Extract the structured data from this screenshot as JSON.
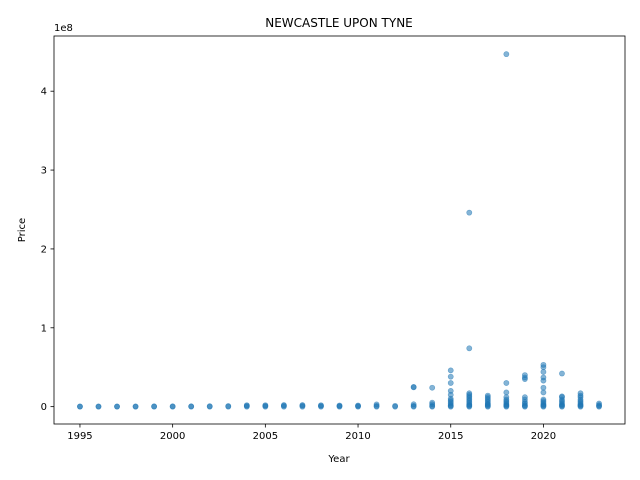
{
  "chart_data": {
    "type": "scatter",
    "title": "NEWCASTLE UPON TYNE",
    "xlabel": "Year",
    "ylabel": "Price",
    "y_scale_label": "1e8",
    "xlim": [
      1993.6,
      2024.4
    ],
    "ylim": [
      -22000000,
      470000000
    ],
    "x_ticks": [
      1995,
      2000,
      2005,
      2010,
      2015,
      2020
    ],
    "x_tick_labels": [
      "1995",
      "2000",
      "2005",
      "2010",
      "2015",
      "2020"
    ],
    "y_ticks": [
      0,
      100000000,
      200000000,
      300000000,
      400000000
    ],
    "y_tick_labels": [
      "0",
      "1",
      "2",
      "3",
      "4"
    ],
    "grid": false,
    "point_color": "#1f77b4",
    "series": [
      {
        "x": [
          1995,
          1995,
          1996,
          1996,
          1997,
          1997,
          1998,
          1998,
          1999,
          1999,
          2000,
          2000,
          2001,
          2001,
          2002,
          2002,
          2003,
          2003,
          2004,
          2004,
          2004,
          2005,
          2005,
          2005,
          2006,
          2006,
          2006,
          2007,
          2007,
          2007,
          2008,
          2008,
          2008,
          2009,
          2009,
          2009,
          2010,
          2010,
          2010,
          2011,
          2011,
          2011,
          2012,
          2012,
          2013,
          2013,
          2013,
          2013,
          2013,
          2014,
          2014,
          2014,
          2014,
          2014,
          2015,
          2015,
          2015,
          2015,
          2015,
          2015,
          2015,
          2015,
          2015,
          2015,
          2015,
          2015,
          2016,
          2016,
          2016,
          2016,
          2016,
          2016,
          2016,
          2016,
          2016,
          2016,
          2016,
          2016,
          2016,
          2017,
          2017,
          2017,
          2017,
          2017,
          2017,
          2017,
          2017,
          2017,
          2017,
          2018,
          2018,
          2018,
          2018,
          2018,
          2018,
          2018,
          2018,
          2018,
          2018,
          2018,
          2019,
          2019,
          2019,
          2019,
          2019,
          2019,
          2019,
          2019,
          2019,
          2019,
          2020,
          2020,
          2020,
          2020,
          2020,
          2020,
          2020,
          2020,
          2020,
          2020,
          2020,
          2020,
          2020,
          2020,
          2021,
          2021,
          2021,
          2021,
          2021,
          2021,
          2021,
          2021,
          2021,
          2021,
          2022,
          2022,
          2022,
          2022,
          2022,
          2022,
          2022,
          2022,
          2022,
          2022,
          2023,
          2023,
          2023,
          2023
        ],
        "y": [
          0,
          300000,
          0,
          300000,
          0,
          300000,
          0,
          300000,
          0,
          400000,
          0,
          400000,
          0,
          500000,
          0,
          600000,
          0,
          800000,
          0,
          1000000,
          1800000,
          0,
          1000000,
          1800000,
          0,
          1200000,
          2000000,
          0,
          1200000,
          2000000,
          0,
          1000000,
          1800000,
          0,
          800000,
          1500000,
          0,
          800000,
          1500000,
          0,
          1000000,
          2800000,
          0,
          1000000,
          0,
          1000000,
          3000000,
          24500000,
          25000000,
          0,
          1000000,
          3000000,
          5000000,
          24000000,
          0,
          1000000,
          2000000,
          4000000,
          6000000,
          8000000,
          10000000,
          15000000,
          20000000,
          30000000,
          38000000,
          46000000,
          0,
          1000000,
          2000000,
          3000000,
          5000000,
          7000000,
          9000000,
          11000000,
          13000000,
          15000000,
          17000000,
          74000000,
          246000000,
          0,
          1000000,
          2000000,
          3000000,
          4000000,
          6000000,
          8000000,
          10000000,
          12000000,
          14000000,
          0,
          1000000,
          2000000,
          3000000,
          5000000,
          7000000,
          9000000,
          12000000,
          18000000,
          30000000,
          447000000,
          0,
          1000000,
          2000000,
          4000000,
          6000000,
          9000000,
          12000000,
          35000000,
          37000000,
          40000000,
          0,
          1000000,
          2000000,
          3000000,
          5000000,
          7000000,
          9000000,
          18000000,
          24000000,
          33000000,
          37000000,
          44000000,
          50000000,
          53000000,
          0,
          1000000,
          2000000,
          3000000,
          5000000,
          7000000,
          9000000,
          12000000,
          13000000,
          42000000,
          0,
          1000000,
          2000000,
          3000000,
          5000000,
          7000000,
          9000000,
          12000000,
          14000000,
          17000000,
          0,
          1000000,
          2000000,
          4000000
        ]
      }
    ]
  }
}
